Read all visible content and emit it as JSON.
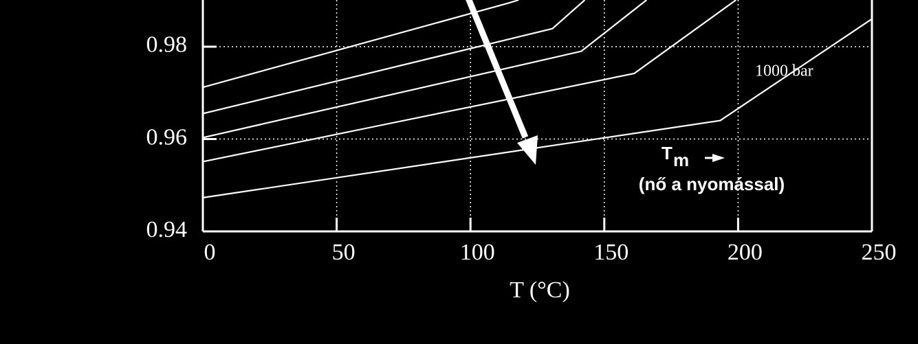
{
  "chart_data": {
    "type": "line",
    "xlabel": "T (°C)",
    "xlim": [
      0,
      250
    ],
    "xticks": [
      0,
      50,
      100,
      150,
      200,
      250
    ],
    "ylim": [
      0.94,
      0.9901
    ],
    "yticks": [
      0.94,
      0.96,
      0.98
    ],
    "grid": true,
    "series": [
      {
        "color": "#ffffff",
        "x": [
          0,
          114,
          118
        ],
        "values": [
          0.9712,
          0.9894,
          0.9901
        ]
      },
      {
        "color": "#ffffff",
        "x": [
          0,
          130.6,
          142.7
        ],
        "values": [
          0.9655,
          0.9839,
          0.9901
        ]
      },
      {
        "color": "#ffffff",
        "x": [
          0,
          141.4,
          165.8
        ],
        "values": [
          0.9603,
          0.979,
          0.9901
        ]
      },
      {
        "color": "#ffffff",
        "x": [
          0,
          161.2,
          199.2
        ],
        "values": [
          0.9551,
          0.9742,
          0.9901
        ]
      },
      {
        "color": "#ffffff",
        "x": [
          0,
          193.3,
          250
        ],
        "values": [
          0.9473,
          0.964,
          0.986
        ]
      }
    ],
    "annotations": [
      "1000 bar",
      "T",
      "m",
      "(nő a nyomással)"
    ]
  }
}
